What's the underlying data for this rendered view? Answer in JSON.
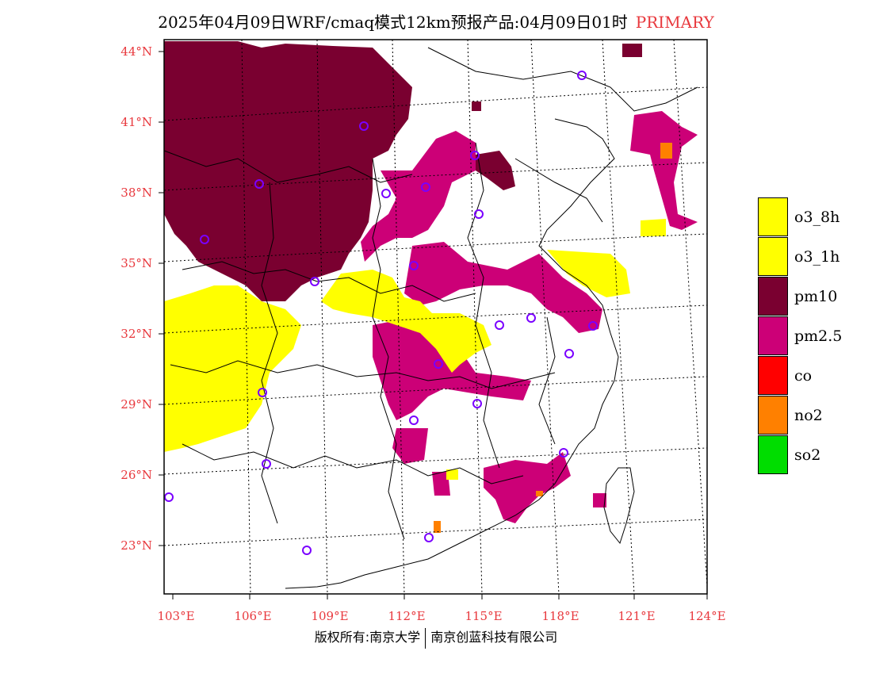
{
  "title": {
    "text": "2025年04月09日WRF/cmaq模式12km预报产品:04月09日01时",
    "tag": "PRIMARY"
  },
  "colors": {
    "accent_red": "#e8383d",
    "o3_8h": "#ffff00",
    "o3_1h": "#ffff00",
    "pm10": "#7a0030",
    "pm25": "#cc0077",
    "co": "#ff0000",
    "no2": "#ff8000",
    "so2": "#00dd00",
    "station_marker": "#7a00ff"
  },
  "axes": {
    "lat_labels": [
      "44°N",
      "41°N",
      "38°N",
      "35°N",
      "32°N",
      "29°N",
      "26°N",
      "23°N"
    ],
    "lon_labels": [
      "103°E",
      "106°E",
      "109°E",
      "112°E",
      "115°E",
      "118°E",
      "121°E",
      "124°E"
    ]
  },
  "legend": {
    "items": [
      {
        "label": "o3_8h",
        "color": "#ffff00"
      },
      {
        "label": "o3_1h",
        "color": "#ffff00"
      },
      {
        "label": "pm10",
        "color": "#7a0030"
      },
      {
        "label": "pm2.5",
        "color": "#cc0077"
      },
      {
        "label": "co",
        "color": "#ff0000"
      },
      {
        "label": "no2",
        "color": "#ff8000"
      },
      {
        "label": "so2",
        "color": "#00dd00"
      }
    ]
  },
  "footer": {
    "left": "版权所有:南京大学",
    "right": "南京创蓝科技有限公司"
  }
}
